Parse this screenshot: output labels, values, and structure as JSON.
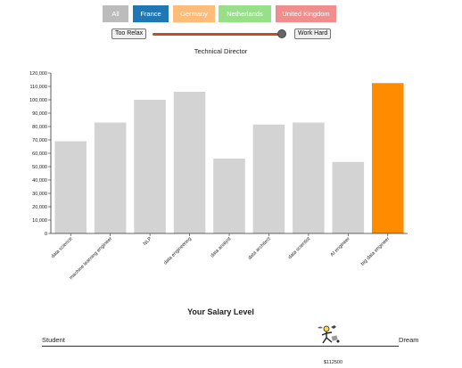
{
  "countries": [
    {
      "label": "All",
      "color": "#bcbcbc"
    },
    {
      "label": "France",
      "color": "#1f77b4"
    },
    {
      "label": "Germany",
      "color": "#ffbb78"
    },
    {
      "label": "Netherlands",
      "color": "#98df8a"
    },
    {
      "label": "United Kingdom",
      "color": "#f08d8d"
    }
  ],
  "effort": {
    "low_label": "Too Relax",
    "high_label": "Work Hard",
    "slider_value": 1.0,
    "track_color": "#c94a1e"
  },
  "chart_data": {
    "type": "bar",
    "title": "Technical Director",
    "categories": [
      "data science",
      "machine learning engineer",
      "NLP",
      "data engineering",
      "data analyst",
      "data architect",
      "data scientist",
      "AI engineer",
      "big data engineer"
    ],
    "values": [
      69000,
      83000,
      100000,
      106000,
      56000,
      81500,
      83000,
      53500,
      112500
    ],
    "highlight_index": 8,
    "bar_color": "#d3d3d3",
    "highlight_color": "#ff8c00",
    "ylim": [
      0,
      120000
    ],
    "yticks": [
      "0",
      "10,000",
      "20,000",
      "30,000",
      "40,000",
      "50,000",
      "60,000",
      "70,000",
      "80,000",
      "90,000",
      "100,000",
      "110,000",
      "120,000"
    ],
    "xlabel": "",
    "ylabel": ""
  },
  "salary_level": {
    "title": "Your Salary Level",
    "start_label": "Student",
    "end_label": "Dream",
    "value_label": "$112500"
  }
}
